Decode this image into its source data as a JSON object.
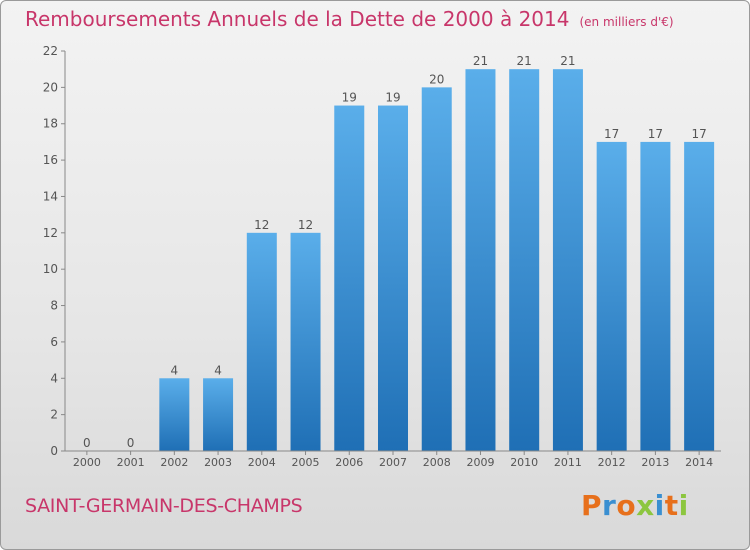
{
  "header": {
    "title": "Remboursements Annuels de la Dette de 2000 à 2014",
    "unit": "(en milliers d'€)"
  },
  "commune": "SAINT-GERMAIN-DES-CHAMPS",
  "brand": {
    "text": "Proxiti",
    "colors": [
      "#e7701c",
      "#3a8fd1",
      "#e7701c",
      "#8cc63f",
      "#3a8fd1",
      "#e7701c",
      "#8cc63f"
    ]
  },
  "colors": {
    "accent": "#c8366a",
    "bar": "#4a9de0",
    "bar_dark": "#1f6fb5"
  },
  "chart_data": {
    "type": "bar",
    "categories": [
      "2000",
      "2001",
      "2002",
      "2003",
      "2004",
      "2005",
      "2006",
      "2007",
      "2008",
      "2009",
      "2010",
      "2011",
      "2012",
      "2013",
      "2014"
    ],
    "values": [
      0,
      0,
      4,
      4,
      12,
      12,
      19,
      19,
      20,
      21,
      21,
      21,
      17,
      17,
      17
    ],
    "ylim": [
      0,
      22
    ],
    "yticks": [
      0,
      2,
      4,
      6,
      8,
      10,
      12,
      14,
      16,
      18,
      20,
      22
    ],
    "grid": false
  }
}
